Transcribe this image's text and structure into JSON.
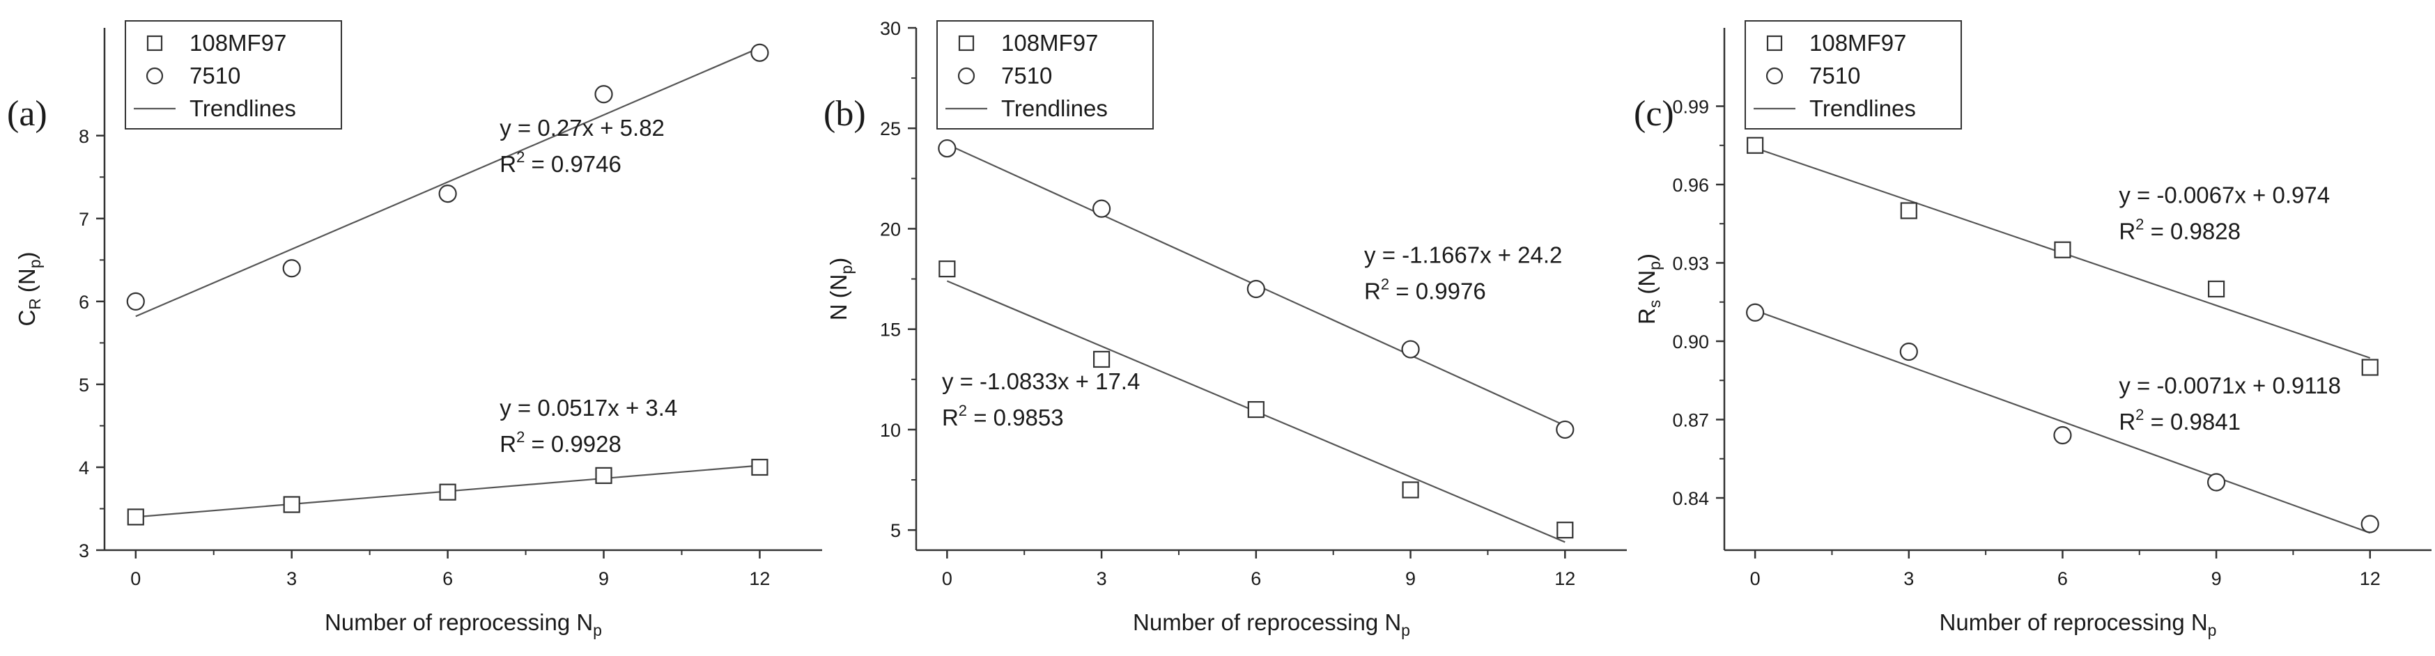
{
  "chart_data": [
    {
      "type": "scatter",
      "panel_label": "(a)",
      "xlabel": "Number of reprocessing N",
      "xlabel_sub": "p",
      "ylabel": "C",
      "ylabel_sub": "R",
      "ylabel_unit": "(N",
      "ylabel_unit_sub": "p",
      "ylabel_close": ")",
      "xlim": [
        -0.6,
        13.2
      ],
      "ylim": [
        3,
        9.3
      ],
      "xticks": [
        0,
        3,
        6,
        9,
        12
      ],
      "yticks": [
        3,
        4,
        5,
        6,
        7,
        8
      ],
      "legend_position": "top-left",
      "legend": [
        {
          "label": "108MF97",
          "marker": "square"
        },
        {
          "label": "7510",
          "marker": "circle"
        },
        {
          "label": "Trendlines",
          "marker": "line"
        }
      ],
      "series": [
        {
          "name": "108MF97",
          "marker": "square",
          "x": [
            0,
            3,
            6,
            9,
            12
          ],
          "y": [
            3.4,
            3.55,
            3.7,
            3.9,
            4.0
          ],
          "trend": {
            "slope": 0.0517,
            "intercept": 3.4
          }
        },
        {
          "name": "7510",
          "marker": "circle",
          "x": [
            0,
            3,
            6,
            9,
            12
          ],
          "y": [
            6.0,
            6.4,
            7.3,
            8.5,
            9.0
          ],
          "trend": {
            "slope": 0.27,
            "intercept": 5.82
          }
        }
      ],
      "annotations": [
        {
          "eq": "y = 0.27x + 5.82",
          "r2_label": "R",
          "r2_value": " = 0.9746",
          "at": [
            7.0,
            8.0
          ]
        },
        {
          "eq": "y = 0.0517x + 3.4",
          "r2_label": "R",
          "r2_value": " = 0.9928",
          "at": [
            7.0,
            4.62
          ]
        }
      ]
    },
    {
      "type": "scatter",
      "panel_label": "(b)",
      "xlabel": "Number of reprocessing N",
      "xlabel_sub": "p",
      "ylabel": "N",
      "ylabel_sub": "",
      "ylabel_unit": "(N",
      "ylabel_unit_sub": "p",
      "ylabel_close": ")",
      "xlim": [
        -0.6,
        13.2
      ],
      "ylim": [
        4,
        30
      ],
      "xticks": [
        0,
        3,
        6,
        9,
        12
      ],
      "yticks": [
        5,
        10,
        15,
        20,
        25,
        30
      ],
      "legend_position": "top-left",
      "legend": [
        {
          "label": "108MF97",
          "marker": "square"
        },
        {
          "label": "7510",
          "marker": "circle"
        },
        {
          "label": "Trendlines",
          "marker": "line"
        }
      ],
      "series": [
        {
          "name": "108MF97",
          "marker": "square",
          "x": [
            0,
            3,
            6,
            9,
            12
          ],
          "y": [
            18.0,
            13.5,
            11.0,
            7.0,
            5.0
          ],
          "trend": {
            "slope": -1.0833,
            "intercept": 17.4
          }
        },
        {
          "name": "7510",
          "marker": "circle",
          "x": [
            0,
            3,
            6,
            9,
            12
          ],
          "y": [
            24.0,
            21.0,
            17.0,
            14.0,
            10.0
          ],
          "trend": {
            "slope": -1.1667,
            "intercept": 24.2
          }
        }
      ],
      "annotations": [
        {
          "eq": "y = -1.1667x + 24.2",
          "r2_label": "R",
          "r2_value": " = 0.9976",
          "at": [
            8.1,
            18.3
          ]
        },
        {
          "eq": "y = -1.0833x + 17.4",
          "r2_label": "R",
          "r2_value": " = 0.9853",
          "at": [
            -0.1,
            12.0
          ]
        }
      ]
    },
    {
      "type": "scatter",
      "panel_label": "(c)",
      "xlabel": "Number of reprocessing N",
      "xlabel_sub": "p",
      "ylabel": "R",
      "ylabel_sub": "s",
      "ylabel_unit": "(N",
      "ylabel_unit_sub": "p",
      "ylabel_close": ")",
      "xlim": [
        -0.6,
        13.2
      ],
      "ylim": [
        0.82,
        1.02
      ],
      "xticks": [
        0,
        3,
        6,
        9,
        12
      ],
      "yticks": [
        0.84,
        0.87,
        0.9,
        0.93,
        0.96,
        0.99
      ],
      "ytick_labels": [
        "0.84",
        "0.87",
        "0.90",
        "0.93",
        "0.96",
        "0.99"
      ],
      "legend_position": "top-left",
      "legend": [
        {
          "label": "108MF97",
          "marker": "square"
        },
        {
          "label": "7510",
          "marker": "circle"
        },
        {
          "label": "Trendlines",
          "marker": "line"
        }
      ],
      "series": [
        {
          "name": "108MF97",
          "marker": "square",
          "x": [
            0,
            3,
            6,
            9,
            12
          ],
          "y": [
            0.975,
            0.95,
            0.935,
            0.92,
            0.89
          ],
          "trend": {
            "slope": -0.0067,
            "intercept": 0.974
          }
        },
        {
          "name": "7510",
          "marker": "circle",
          "x": [
            0,
            3,
            6,
            9,
            12
          ],
          "y": [
            0.911,
            0.896,
            0.864,
            0.846,
            0.83
          ],
          "trend": {
            "slope": -0.0071,
            "intercept": 0.9118
          }
        }
      ],
      "annotations": [
        {
          "eq": "y = -0.0067x + 0.974",
          "r2_label": "R",
          "r2_value": " = 0.9828",
          "at": [
            7.1,
            0.953
          ]
        },
        {
          "eq": "y = -0.0071x + 0.9118",
          "r2_label": "R",
          "r2_value": " = 0.9841",
          "at": [
            7.1,
            0.88
          ]
        }
      ]
    }
  ]
}
